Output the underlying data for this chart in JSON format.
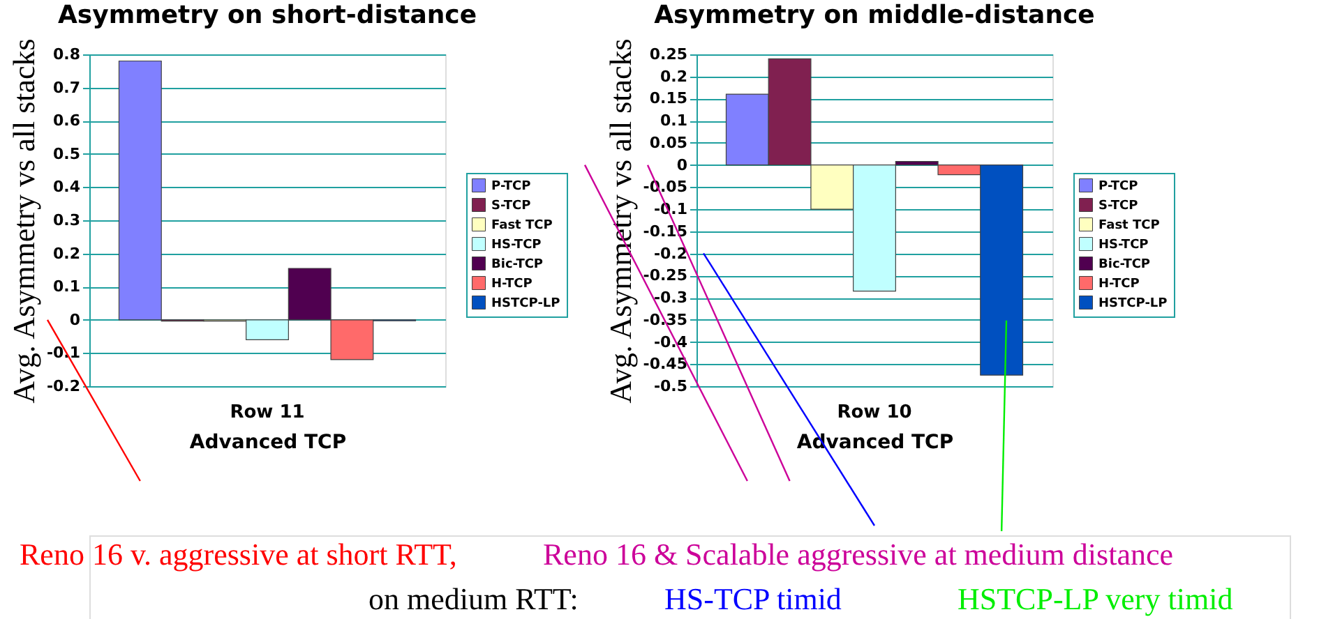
{
  "chart_data": [
    {
      "type": "bar",
      "title": "Asymmetry on short-distance",
      "xlabel": "Advanced TCP",
      "ylabel": "Avg. Asymmetry vs all stacks",
      "categories": [
        "Row 11"
      ],
      "ylim": [
        -0.2,
        0.8
      ],
      "yticks": [
        -0.2,
        -0.1,
        0,
        0.1,
        0.2,
        0.3,
        0.4,
        0.5,
        0.6,
        0.7,
        0.8
      ],
      "grid": "y",
      "legend": "right",
      "series": [
        {
          "name": "P-TCP",
          "color": "#8080ff",
          "values": [
            0.78
          ]
        },
        {
          "name": "S-TCP",
          "color": "#802050",
          "values": [
            -0.004
          ]
        },
        {
          "name": "Fast TCP",
          "color": "#ffffc0",
          "values": [
            -0.004
          ]
        },
        {
          "name": "HS-TCP",
          "color": "#c0ffff",
          "values": [
            -0.06
          ]
        },
        {
          "name": "Bic-TCP",
          "color": "#500050",
          "values": [
            0.155
          ]
        },
        {
          "name": "H-TCP",
          "color": "#ff6a6a",
          "values": [
            -0.12
          ]
        },
        {
          "name": "HSTCP-LP",
          "color": "#0050c0",
          "values": [
            -0.003
          ]
        }
      ],
      "annotations": [
        "Reno 16 v. aggressive at short RTT,",
        "Reno 16 & Scalable aggressive at medium distance",
        "on medium RTT:",
        "HS-TCP timid",
        "HSTCP-LP very timid"
      ]
    },
    {
      "type": "bar",
      "title": "Asymmetry on middle-distance",
      "xlabel": "Advanced TCP",
      "ylabel": "Avg. Asymmetry vs all stacks",
      "categories": [
        "Row 10"
      ],
      "ylim": [
        -0.5,
        0.25
      ],
      "yticks": [
        -0.5,
        -0.45,
        -0.4,
        -0.35,
        -0.3,
        -0.25,
        -0.2,
        -0.15,
        -0.1,
        -0.05,
        0,
        0.05,
        0.1,
        0.15,
        0.2,
        0.25
      ],
      "grid": "y",
      "legend": "right",
      "series": [
        {
          "name": "P-TCP",
          "color": "#8080ff",
          "values": [
            0.16
          ]
        },
        {
          "name": "S-TCP",
          "color": "#802050",
          "values": [
            0.24
          ]
        },
        {
          "name": "Fast TCP",
          "color": "#ffffc0",
          "values": [
            -0.1
          ]
        },
        {
          "name": "HS-TCP",
          "color": "#c0ffff",
          "values": [
            -0.285
          ]
        },
        {
          "name": "Bic-TCP",
          "color": "#500050",
          "values": [
            0.008
          ]
        },
        {
          "name": "H-TCP",
          "color": "#ff6a6a",
          "values": [
            -0.022
          ]
        },
        {
          "name": "HSTCP-LP",
          "color": "#0050c0",
          "values": [
            -0.475
          ]
        }
      ]
    }
  ]
}
